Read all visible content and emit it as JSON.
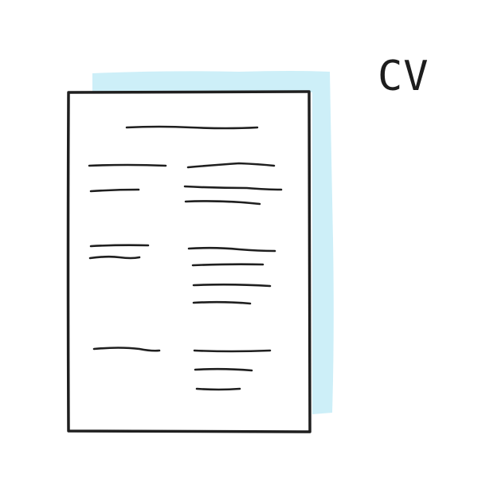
{
  "title": "CV",
  "colors": {
    "shadow_page": "#cdeff8",
    "ink": "#1f1f1f",
    "paper": "#ffffff"
  },
  "icon": "resume-document-icon"
}
